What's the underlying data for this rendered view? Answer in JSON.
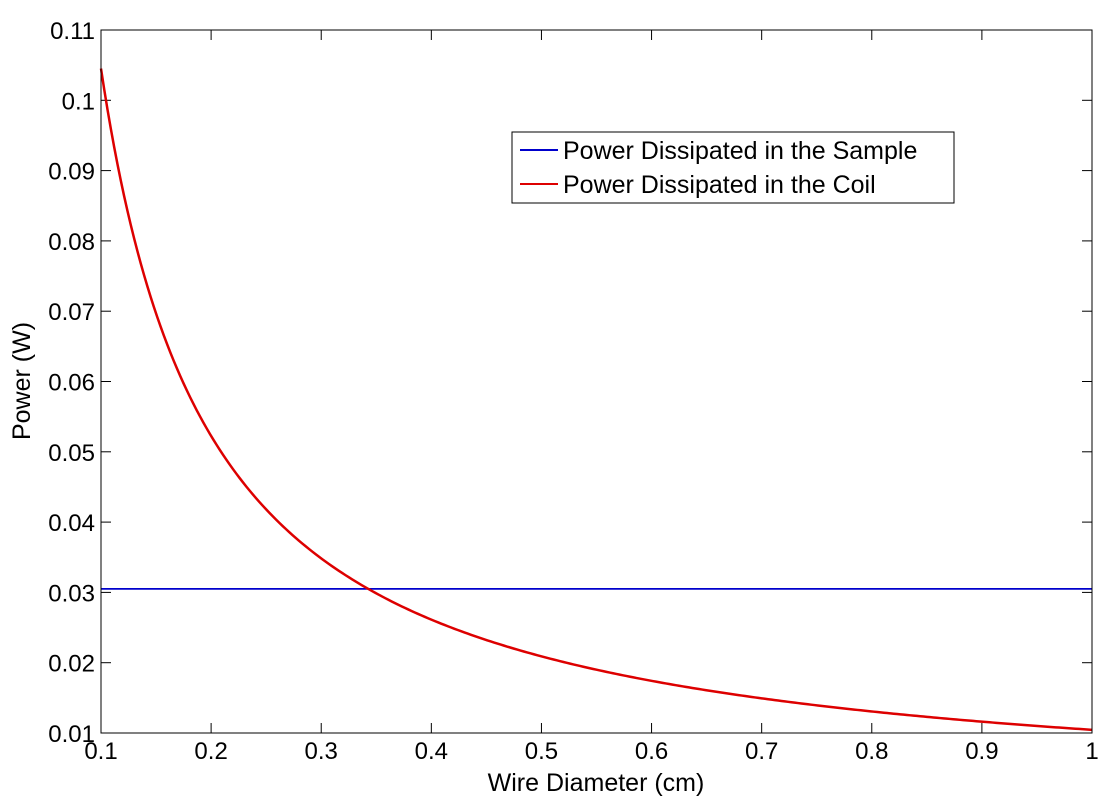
{
  "chart_data": {
    "type": "line",
    "title": "",
    "xlabel": "Wire Diameter (cm)",
    "ylabel": "Power (W)",
    "xlim": [
      0.1,
      1
    ],
    "ylim": [
      0.01,
      0.11
    ],
    "x_ticks": [
      0.1,
      0.2,
      0.3,
      0.4,
      0.5,
      0.6,
      0.7,
      0.8,
      0.9,
      1
    ],
    "x_tick_labels": [
      "0.1",
      "0.2",
      "0.3",
      "0.4",
      "0.5",
      "0.6",
      "0.7",
      "0.8",
      "0.9",
      "1"
    ],
    "y_ticks": [
      0.01,
      0.02,
      0.03,
      0.04,
      0.05,
      0.06,
      0.07,
      0.08,
      0.09,
      0.1,
      0.11
    ],
    "y_tick_labels": [
      "0.01",
      "0.02",
      "0.03",
      "0.04",
      "0.05",
      "0.06",
      "0.07",
      "0.08",
      "0.09",
      "0.1",
      "0.11"
    ],
    "grid": false,
    "legend_position": "top-right",
    "series": [
      {
        "name": "Power Dissipated in the Sample",
        "color": "#0000cc",
        "x": [
          0.1,
          1
        ],
        "y": [
          0.0305,
          0.0305
        ]
      },
      {
        "name": "Power Dissipated in the Coil",
        "color": "#dd0000",
        "x": [
          0.1,
          0.12,
          0.15,
          0.2,
          0.25,
          0.3,
          0.35,
          0.4,
          0.45,
          0.5,
          0.55,
          0.6,
          0.65,
          0.7,
          0.75,
          0.8,
          0.85,
          0.9,
          0.95,
          1
        ],
        "y": [
          0.1045,
          0.0871,
          0.0697,
          0.0523,
          0.0418,
          0.0348,
          0.0299,
          0.0261,
          0.0232,
          0.0209,
          0.019,
          0.0174,
          0.0161,
          0.0149,
          0.0139,
          0.0131,
          0.0123,
          0.0116,
          0.011,
          0.01045
        ]
      }
    ]
  }
}
